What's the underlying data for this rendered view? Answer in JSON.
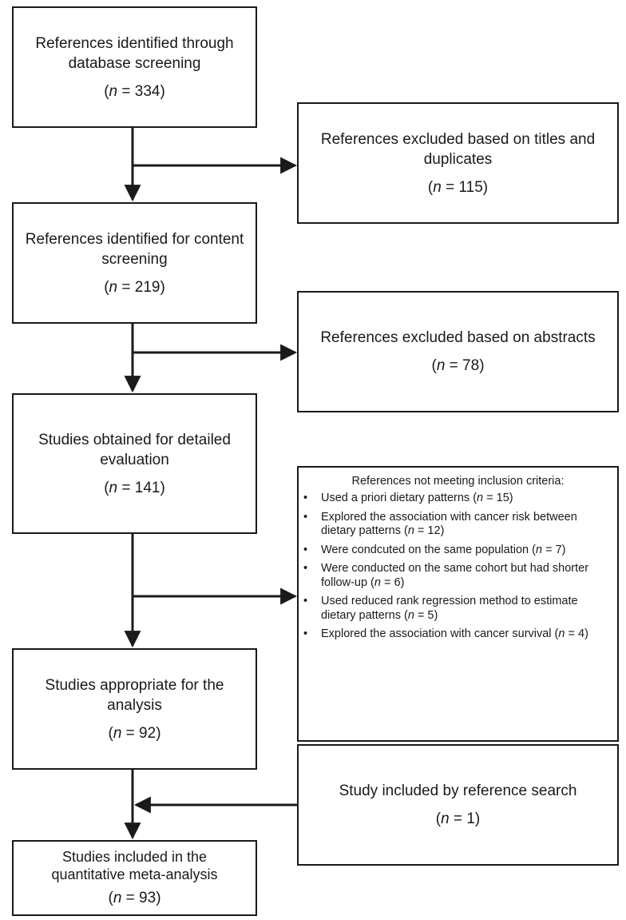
{
  "boxes": {
    "identified": {
      "title": "References identified through database screening",
      "n": "334"
    },
    "excluded_titles": {
      "title": "References excluded based on titles and duplicates",
      "n": "115"
    },
    "content_screening": {
      "title": "References identified for content screening",
      "n": "219"
    },
    "excluded_abstracts": {
      "title": "References excluded based on abstracts",
      "n": "78"
    },
    "detailed_evaluation": {
      "title": "Studies obtained for detailed evaluation",
      "n": "141"
    },
    "appropriate": {
      "title": "Studies appropriate for the analysis",
      "n": "92"
    },
    "reference_search": {
      "title": "Study included by reference search",
      "n": "1"
    },
    "included": {
      "title": "Studies included in the quantitative meta-analysis",
      "n": "93"
    }
  },
  "criteria": {
    "heading": "References not meeting inclusion criteria:",
    "bullet": "•",
    "items": [
      {
        "text": "Used a priori dietary patterns",
        "n": "15"
      },
      {
        "text": "Explored the association with cancer risk between dietary patterns",
        "n": "12"
      },
      {
        "text": "Were condcuted on the same population",
        "n": "7"
      },
      {
        "text": "Were conducted on the same cohort but had shorter follow-up",
        "n": "6"
      },
      {
        "text": "Used reduced rank regression method to estimate dietary patterns",
        "n": "5"
      },
      {
        "text": "Explored the association with cancer survival",
        "n": "4"
      }
    ]
  },
  "labels": {
    "n_symbol": "n",
    "n_prefix": "(",
    "n_equals": " = ",
    "n_suffix": ")"
  }
}
